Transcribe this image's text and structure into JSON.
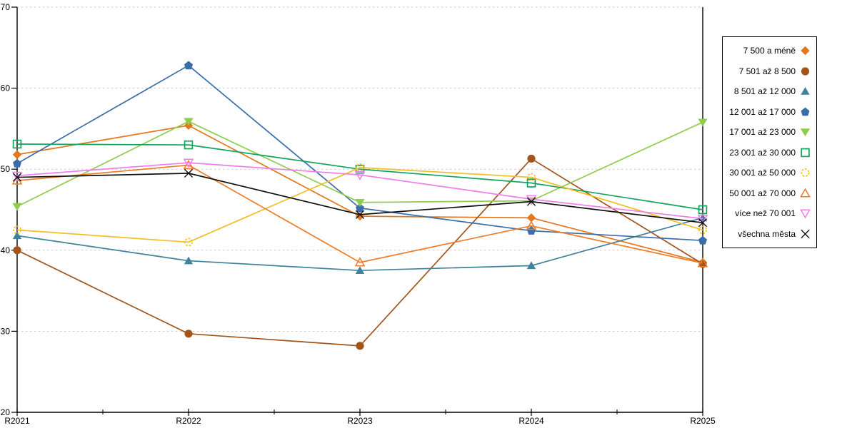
{
  "chart_data": {
    "type": "line",
    "title": "",
    "xlabel": "",
    "ylabel": "",
    "x_tick_labels": [
      "R2021",
      "R2022",
      "R2023",
      "R2024",
      "R2025"
    ],
    "yticks": [
      20,
      30,
      40,
      50,
      60,
      70
    ],
    "y_tick_labels": [
      "20",
      "30",
      "40",
      "50",
      "60",
      "70"
    ],
    "ylim": [
      20,
      70
    ],
    "grid": "horizontal dashed gridlines at 30,40,50,60,70",
    "legend_position": "outside-right-boxed",
    "series": [
      {
        "name": "7 500 a méně",
        "color": "#e4771b",
        "marker": "diamond-solid",
        "values": [
          51.8,
          55.4,
          44.2,
          44.0,
          38.5
        ]
      },
      {
        "name": "7 501 až 8 500",
        "color": "#a2551b",
        "marker": "circle-solid",
        "values": [
          40.0,
          29.7,
          28.2,
          51.3,
          38.3
        ]
      },
      {
        "name": "8 501 až 12 000",
        "color": "#3e829b",
        "marker": "triangle-up-solid",
        "values": [
          41.8,
          38.7,
          37.5,
          38.1,
          44.0
        ]
      },
      {
        "name": "12 001 až 17 000",
        "color": "#3a6ea8",
        "marker": "pentagon-solid",
        "values": [
          50.7,
          62.8,
          45.2,
          42.4,
          41.2
        ]
      },
      {
        "name": "17 001 až 23 000",
        "color": "#90cc4d",
        "marker": "triangle-down-solid",
        "values": [
          45.4,
          55.9,
          45.9,
          46.1,
          55.8
        ]
      },
      {
        "name": "23 001 až 30 000",
        "color": "#12a45c",
        "marker": "square-open",
        "values": [
          53.1,
          53.0,
          50.0,
          48.3,
          45.0
        ]
      },
      {
        "name": "30 001 až 50 000",
        "color": "#f2be22",
        "marker": "circle-open-dashed",
        "values": [
          42.5,
          41.0,
          50.2,
          49.0,
          42.5
        ]
      },
      {
        "name": "50 001 až 70 000",
        "color": "#ee7b25",
        "marker": "triangle-up-open",
        "values": [
          48.6,
          50.5,
          38.5,
          43.0,
          38.4
        ]
      },
      {
        "name": "více než 70 001",
        "color": "#ef7deb",
        "marker": "triangle-down-open",
        "values": [
          49.2,
          50.8,
          49.3,
          46.3,
          43.9
        ]
      },
      {
        "name": "všechna města",
        "color": "#111111",
        "marker": "x-cross",
        "values": [
          49.0,
          49.5,
          44.4,
          46.0,
          43.4
        ]
      }
    ]
  },
  "colors": {
    "background": "#ffffff",
    "axis": "#000000",
    "grid": "#c9c9c9",
    "tick_label": "#000000",
    "legend_border": "#000000"
  }
}
